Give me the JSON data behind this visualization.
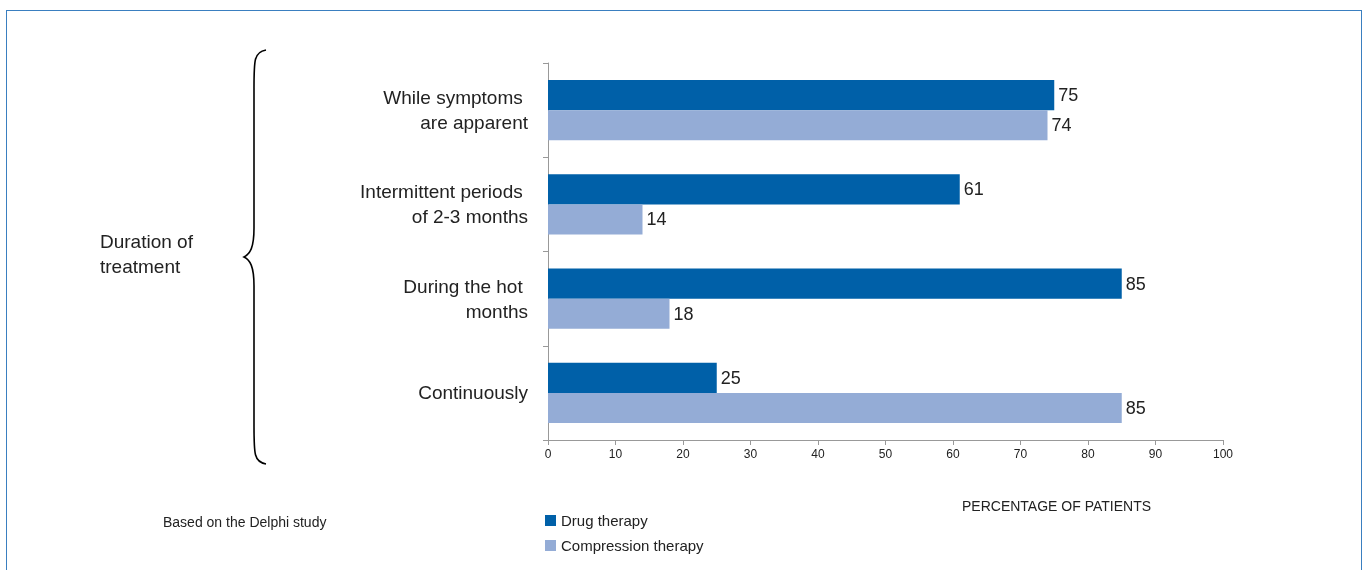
{
  "chart_data": {
    "type": "bar",
    "orientation": "horizontal",
    "xlabel": "PERCENTAGE OF PATIENTS",
    "categories": [
      "While symptoms are apparent",
      "Intermittent periods of 2-3 months",
      "During the hot months",
      "Continuously"
    ],
    "series": [
      {
        "name": "Drug therapy",
        "color": "#0060a8",
        "values": [
          75,
          61,
          85,
          25
        ]
      },
      {
        "name": "Compression therapy",
        "color": "#94acd6",
        "values": [
          74,
          14,
          18,
          85
        ]
      }
    ],
    "xlim": [
      0,
      100
    ],
    "xticks": [
      0,
      10,
      20,
      30,
      40,
      50,
      60,
      70,
      80,
      90,
      100
    ],
    "data_labels": true,
    "grid": false,
    "legend": "bottom",
    "annotations": [
      "Duration of treatment",
      "Based on the Delphi study"
    ]
  }
}
